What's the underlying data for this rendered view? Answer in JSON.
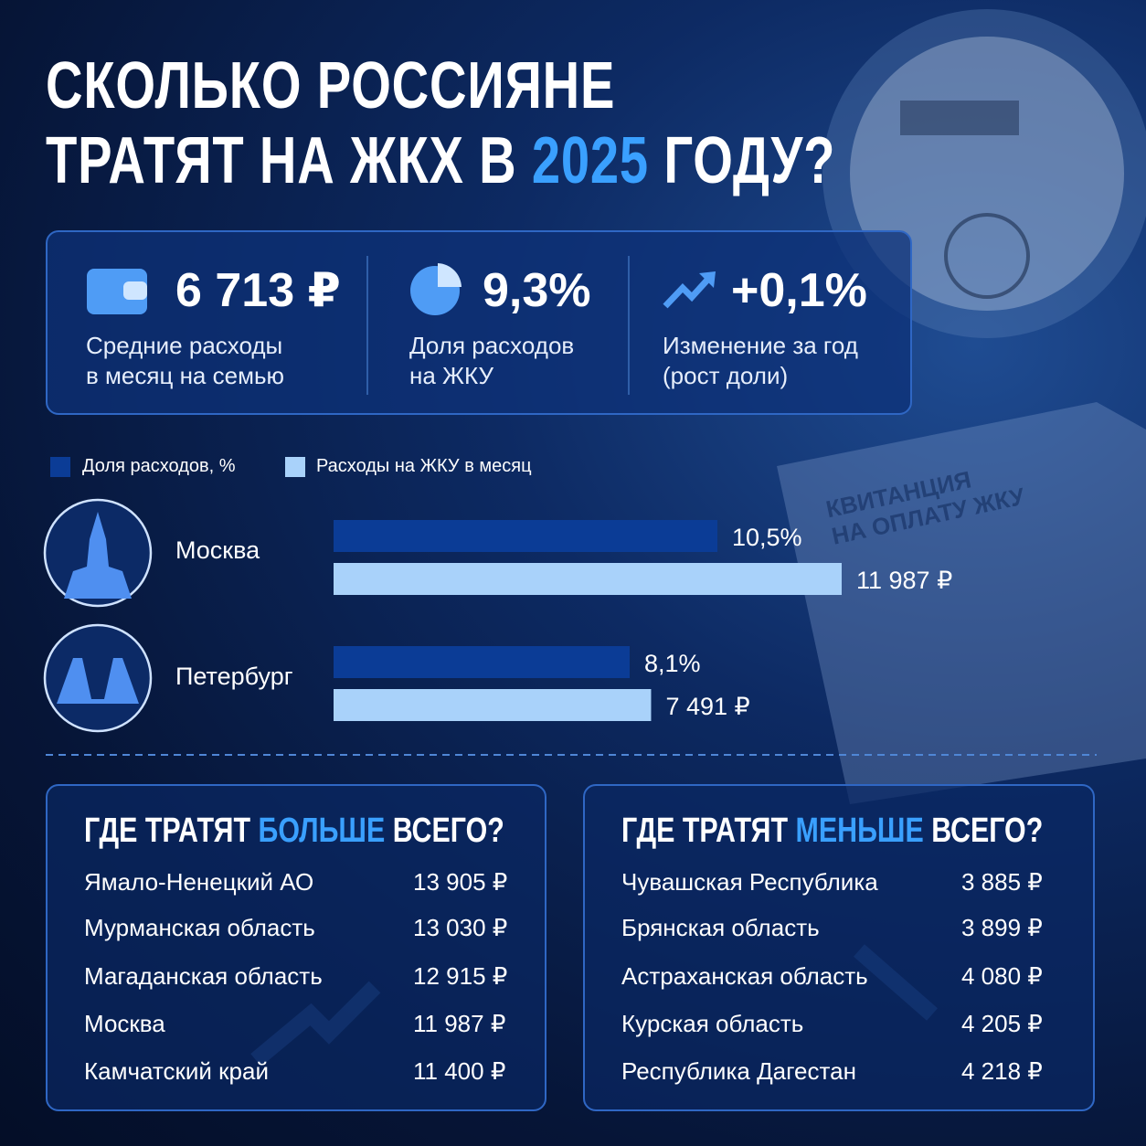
{
  "title": {
    "line1": "СКОЛЬКО РОССИЯНЕ",
    "line2_start": "ТРАТЯТ НА ЖКХ В",
    "year": "2025",
    "line2_end": "ГОДУ?"
  },
  "stats": [
    {
      "value": "6 713 ₽",
      "label": [
        "Средние расходы",
        "в месяц на семью"
      ]
    },
    {
      "value": "9,3%",
      "label": [
        "Доля расходов",
        "на ЖКУ"
      ]
    },
    {
      "value": "+0,1%",
      "label": [
        "Изменение за год",
        "(рост доли)"
      ]
    }
  ],
  "chart_data": {
    "type": "bar",
    "categories": [
      "Москва",
      "Петербург"
    ],
    "series": [
      {
        "name": "Доля расходов, %",
        "color": "#0b3c96",
        "values": [
          10.5,
          8.1
        ],
        "value_labels": [
          "10,5%",
          "8,1%"
        ]
      },
      {
        "name": "Расходы на ЖКУ в месяц",
        "color": "#a9d2fa",
        "values": [
          11987,
          7491
        ],
        "value_labels": [
          "11 987 ₽",
          "7 491 ₽"
        ]
      }
    ]
  },
  "receipt": {
    "line1": "КВИТАНЦИЯ",
    "line2": "НА ОПЛАТУ ЖКУ"
  },
  "most": {
    "title_start": "ГДЕ ТРАТЯТ",
    "title_accent": "БОЛЬШЕ",
    "title_end": "ВСЕГО?",
    "rows": [
      [
        "Ямало-Ненецкий АО",
        "13 905 ₽"
      ],
      [
        "Мурманская область",
        "13 030 ₽"
      ],
      [
        "Магаданская область",
        "12 915 ₽"
      ],
      [
        "Москва",
        "11 987 ₽"
      ],
      [
        "Камчатский край",
        "11 400 ₽"
      ]
    ]
  },
  "least": {
    "title_start": "ГДЕ ТРАТЯТ",
    "title_accent": "МЕНЬШЕ",
    "title_end": "ВСЕГО?",
    "rows": [
      [
        "Чувашская Республика",
        "3 885 ₽"
      ],
      [
        "Брянская область",
        "3 899 ₽"
      ],
      [
        "Астраханская область",
        "4 080 ₽"
      ],
      [
        "Курская область",
        "4 205 ₽"
      ],
      [
        "Республика Дагестан",
        "4 218 ₽"
      ]
    ]
  }
}
